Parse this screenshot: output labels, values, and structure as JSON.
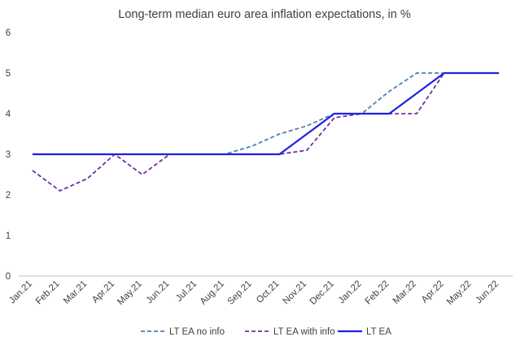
{
  "chart_data": {
    "type": "line",
    "title": "Long-term median euro area inflation expectations, in %",
    "xlabel": "",
    "ylabel": "",
    "ylim": [
      0,
      6
    ],
    "yticks": [
      "0",
      "1",
      "2",
      "3",
      "4",
      "5",
      "6"
    ],
    "grid": false,
    "legend_position": "bottom",
    "categories": [
      "Jan.21",
      "Feb.21",
      "Mar.21",
      "Apr.21",
      "May.21",
      "Jun.21",
      "Jul.21",
      "Aug.21",
      "Sep.21",
      "Oct.21",
      "Nov.21",
      "Dec.21",
      "Jan.22",
      "Feb.22",
      "Mar.22",
      "Apr.22",
      "May.22",
      "Jun.22"
    ],
    "series": [
      {
        "name": "LT EA no info",
        "color": "#4a7ebb",
        "style": "dashed",
        "x": [
          "Jan.21",
          "Feb.21",
          "Mar.21",
          "Apr.21",
          "May.21",
          "Jun.21",
          "Jul.21",
          "Aug.21",
          "Sep.21",
          "Oct.21",
          "Nov.21",
          "Dec.21",
          "Jan.22",
          "Feb.22",
          "Mar.22",
          "Apr.22"
        ],
        "values": [
          3,
          3,
          3,
          3,
          3,
          3,
          3,
          3,
          3.2,
          3.5,
          3.7,
          4,
          4,
          4.55,
          5,
          5
        ]
      },
      {
        "name": "LT EA with info",
        "color": "#7030a0",
        "style": "dashed",
        "x": [
          "Jan.21",
          "Feb.21",
          "Mar.21",
          "Apr.21",
          "May.21",
          "Jun.21",
          "Jul.21",
          "Aug.21",
          "Sep.21",
          "Oct.21",
          "Nov.21",
          "Dec.21",
          "Jan.22",
          "Feb.22",
          "Mar.22",
          "Apr.22"
        ],
        "values": [
          2.6,
          2.1,
          2.4,
          3,
          2.5,
          3,
          3,
          3,
          3,
          3,
          3.1,
          3.9,
          4,
          4,
          4,
          5
        ]
      },
      {
        "name": "LT EA",
        "color": "#1f1fe6",
        "style": "solid",
        "x": [
          "Jan.21",
          "Feb.21",
          "Mar.21",
          "Apr.21",
          "May.21",
          "Jun.21",
          "Jul.21",
          "Aug.21",
          "Sep.21",
          "Oct.21",
          "Nov.21",
          "Dec.21",
          "Jan.22",
          "Feb.22",
          "Mar.22",
          "Apr.22",
          "May.22",
          "Jun.22"
        ],
        "values": [
          3,
          3,
          3,
          3,
          3,
          3,
          3,
          3,
          3,
          3,
          3.5,
          4,
          4,
          4,
          4.5,
          5,
          5,
          5
        ]
      }
    ]
  }
}
